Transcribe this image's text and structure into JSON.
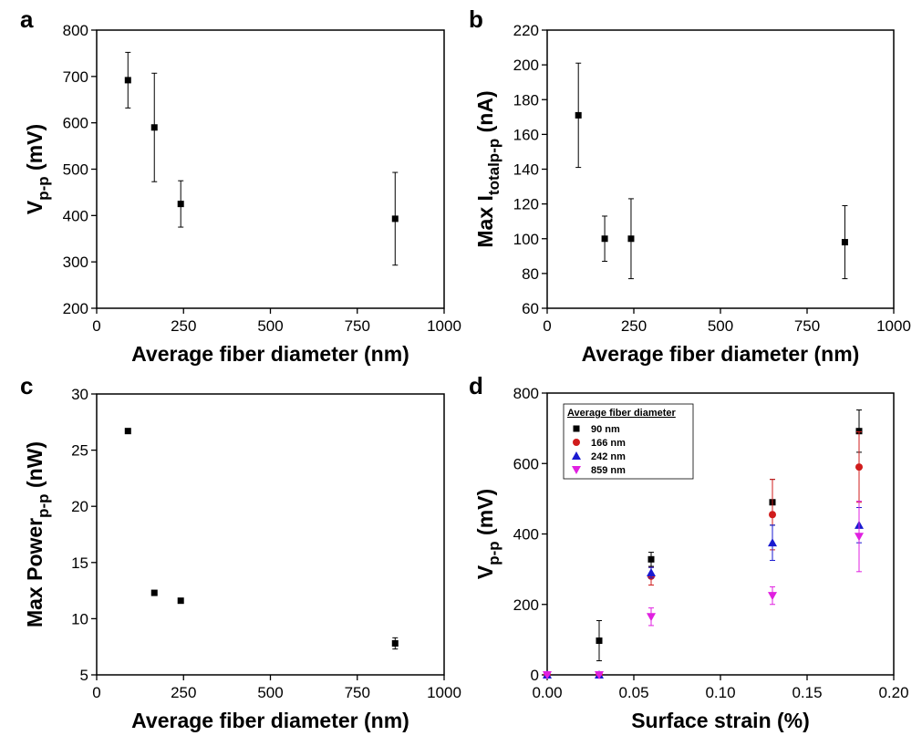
{
  "chart_data": [
    {
      "type": "scatter",
      "label": "a",
      "xlabel": "Average fiber diameter (nm)",
      "ylabel": [
        {
          "text": "V"
        },
        {
          "text": "p-p",
          "sub": true
        },
        {
          "text": " (mV)"
        }
      ],
      "x": [
        90,
        166,
        242,
        859
      ],
      "values": [
        692,
        590,
        425,
        393
      ],
      "errors": [
        60,
        117,
        50,
        100
      ],
      "color": "#000000",
      "xlim": [
        0,
        1000
      ],
      "xticks": [
        0,
        250,
        500,
        750,
        1000
      ],
      "ylim": [
        200,
        800
      ],
      "yticks": [
        200,
        300,
        400,
        500,
        600,
        700,
        800
      ]
    },
    {
      "type": "scatter",
      "label": "b",
      "xlabel": "Average fiber diameter (nm)",
      "ylabel": [
        {
          "text": "Max I"
        },
        {
          "text": "totalp-p",
          "sub": true
        },
        {
          "text": " (nA)"
        }
      ],
      "x": [
        90,
        166,
        242,
        859
      ],
      "values": [
        171,
        100,
        100,
        98
      ],
      "errors": [
        30,
        13,
        23,
        21
      ],
      "color": "#000000",
      "xlim": [
        0,
        1000
      ],
      "xticks": [
        0,
        250,
        500,
        750,
        1000
      ],
      "ylim": [
        60,
        220
      ],
      "yticks": [
        60,
        80,
        100,
        120,
        140,
        160,
        180,
        200,
        220
      ]
    },
    {
      "type": "scatter",
      "label": "c",
      "xlabel": "Average fiber diameter (nm)",
      "ylabel": [
        {
          "text": "Max Power"
        },
        {
          "text": "p-p",
          "sub": true
        },
        {
          "text": " (nW)"
        }
      ],
      "x": [
        90,
        166,
        242,
        859
      ],
      "values": [
        26.7,
        12.3,
        11.6,
        7.8
      ],
      "errors": [
        0.1,
        0.2,
        0.2,
        0.5
      ],
      "color": "#000000",
      "xlim": [
        0,
        1000
      ],
      "xticks": [
        0,
        250,
        500,
        750,
        1000
      ],
      "ylim": [
        5,
        30
      ],
      "yticks": [
        5,
        10,
        15,
        20,
        25,
        30
      ]
    },
    {
      "type": "multi-scatter",
      "label": "d",
      "xlabel": "Surface strain (%)",
      "ylabel": [
        {
          "text": "V"
        },
        {
          "text": "p-p",
          "sub": true
        },
        {
          "text": " (mV)"
        }
      ],
      "legend_title": "Average fiber diameter",
      "legend": "upper left",
      "x": [
        0,
        0.03,
        0.06,
        0.13,
        0.18
      ],
      "series": [
        {
          "name": "90 nm",
          "color": "#000000",
          "marker": "square",
          "values": [
            0,
            97,
            328,
            490,
            692
          ],
          "errors": [
            0,
            57,
            20,
            65,
            60
          ]
        },
        {
          "name": "166 nm",
          "color": "#d01c1c",
          "marker": "circle",
          "values": [
            0,
            0,
            280,
            455,
            590
          ],
          "errors": [
            0,
            0,
            25,
            100,
            100
          ]
        },
        {
          "name": "242 nm",
          "color": "#1a1ad0",
          "marker": "triangle-up",
          "values": [
            0,
            0,
            290,
            375,
            425
          ],
          "errors": [
            0,
            0,
            15,
            50,
            50
          ]
        },
        {
          "name": "859 nm",
          "color": "#e020e0",
          "marker": "triangle-down",
          "values": [
            0,
            0,
            165,
            225,
            393
          ],
          "errors": [
            0,
            0,
            25,
            25,
            100
          ]
        }
      ],
      "xlim": [
        0,
        0.2
      ],
      "xticks": [
        {
          "value": 0,
          "label": "0.00"
        },
        {
          "value": 0.05,
          "label": "0.05"
        },
        {
          "value": 0.1,
          "label": "0.10"
        },
        {
          "value": 0.15,
          "label": "0.15"
        },
        {
          "value": 0.2,
          "label": "0.20"
        }
      ],
      "ylim": [
        0,
        800
      ],
      "yticks": [
        0,
        200,
        400,
        600,
        800
      ]
    }
  ]
}
